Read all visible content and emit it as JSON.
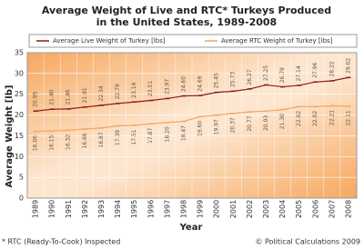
{
  "chart_data": {
    "type": "line",
    "title": [
      "Average Weight of Live and RTC* Turkeys Produced",
      "in the United States, 1989-2008"
    ],
    "x_label": "Year",
    "y_label": "Average Weight [lb]",
    "categories": [
      "1989",
      "1990",
      "1991",
      "1992",
      "1993",
      "1994",
      "1995",
      "1996",
      "1997",
      "1998",
      "1999",
      "2000",
      "2001",
      "2002",
      "2003",
      "2004",
      "2005",
      "2006",
      "2007",
      "2008"
    ],
    "series": [
      {
        "name": "Average Live Weight of Turkey [lbs]",
        "color": "#8b1a1a",
        "values": [
          20.95,
          21.4,
          21.46,
          21.91,
          22.34,
          22.79,
          23.14,
          23.51,
          23.97,
          24.6,
          24.69,
          25.45,
          25.73,
          26.27,
          27.25,
          26.78,
          27.14,
          27.96,
          28.22,
          29.02
        ],
        "value_labels": [
          "20.95",
          "21.40",
          "21.46",
          "21.91",
          "22.34",
          "22.79",
          "23.14",
          "23.51",
          "23.97",
          "24.60",
          "24.69",
          "25.45",
          "25.73",
          "26.27",
          "27.25",
          "26.78",
          "27.14",
          "27.96",
          "28.22",
          "29.02"
        ]
      },
      {
        "name": "Average RTC Weight of Turkey [lbs]",
        "color": "#f4a460",
        "values": [
          16.06,
          16.15,
          16.32,
          16.66,
          16.87,
          17.39,
          17.51,
          17.87,
          18.2,
          18.47,
          19.6,
          19.97,
          20.37,
          20.77,
          20.93,
          21.3,
          22.02,
          22.02,
          22.21,
          22.11
        ],
        "value_labels": [
          "16.06",
          "16.15",
          "16.32",
          "16.66",
          "16.87",
          "17.39",
          "17.51",
          "17.87",
          "18.20",
          "18.47",
          "19.60",
          "19.97",
          "20.37",
          "20.77",
          "20.93",
          "21.30",
          "22.02",
          "22.02",
          "22.21",
          "22.11"
        ]
      }
    ],
    "ylim": [
      0,
      35
    ],
    "yticks": [
      0,
      5,
      10,
      15,
      20,
      25,
      30,
      35
    ],
    "grid": true,
    "notes": [
      "* RTC (Ready-To-Cook) Inspected",
      "© Political Calculations 2009"
    ]
  }
}
